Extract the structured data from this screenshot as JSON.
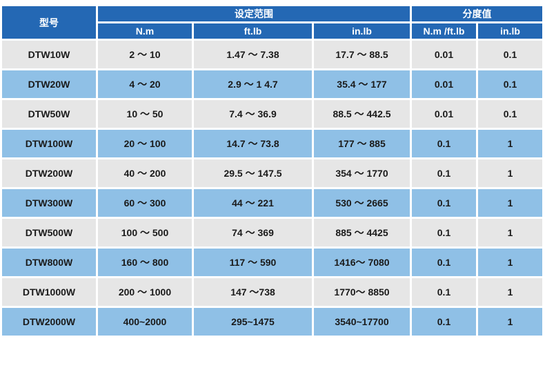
{
  "table": {
    "header": {
      "model": "型号",
      "range_group": "设定范围",
      "resolution_group": "分度值",
      "sub": [
        "N.m",
        "ft.lb",
        "in.lb",
        "N.m /ft.lb",
        "in.lb"
      ]
    },
    "rows": [
      [
        "DTW10W",
        "2 ～ 10",
        "1.47 ～ 7.38",
        "17.7 ～ 88.5",
        "0.01",
        "0.1"
      ],
      [
        "DTW20W",
        "4 ～ 20",
        "2.9 ～ 1 4.7",
        "35.4 ～ 177",
        "0.01",
        "0.1"
      ],
      [
        "DTW50W",
        "10 ～ 50",
        "7.4 ～ 36.9",
        "88.5 ～ 442.5",
        "0.01",
        "0.1"
      ],
      [
        "DTW100W",
        "20 ～ 100",
        "14.7 ～ 73.8",
        "177 ～ 885",
        "0.1",
        "1"
      ],
      [
        "DTW200W",
        "40 ～ 200",
        "29.5 ～ 147.5",
        "354 ～ 1770",
        "0.1",
        "1"
      ],
      [
        "DTW300W",
        "60 ～ 300",
        "44 ～ 221",
        "530 ～ 2665",
        "0.1",
        "1"
      ],
      [
        "DTW500W",
        "100 ～ 500",
        "74 ～ 369",
        "885 ～ 4425",
        "0.1",
        "1"
      ],
      [
        "DTW800W",
        "160 ～ 800",
        "117 ～ 590",
        "1416～ 7080",
        "0.1",
        "1"
      ],
      [
        "DTW1000W",
        "200 ～ 1000",
        "147 ～738",
        "1770～ 8850",
        "0.1",
        "1"
      ],
      [
        "DTW2000W",
        "400~2000",
        "295~1475",
        "3540~17700",
        "0.1",
        "1"
      ]
    ]
  },
  "colors": {
    "header_bg": "#2468b4",
    "header_text": "#ffffff",
    "row_light": "#e6e6e6",
    "row_blue": "#8fc0e6",
    "cell_text": "#1a1a1a"
  }
}
